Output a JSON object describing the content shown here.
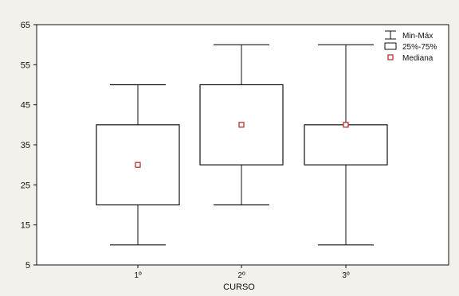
{
  "chart_data": {
    "type": "box",
    "categories": [
      "1º",
      "2º",
      "3º"
    ],
    "series": [
      {
        "stat": "Min-Máx / 25%-75% / Mediana",
        "boxes": [
          {
            "min": 10,
            "q1": 20,
            "median": 30,
            "q3": 40,
            "max": 50
          },
          {
            "min": 20,
            "q1": 30,
            "median": 40,
            "q3": 50,
            "max": 60
          },
          {
            "min": 10,
            "q1": 30,
            "median": 40,
            "q3": 40,
            "max": 60
          }
        ]
      }
    ],
    "title": "",
    "xlabel": "CURSO",
    "ylabel": "",
    "ylim": [
      5,
      65
    ],
    "yticks": [
      5,
      15,
      25,
      35,
      45,
      55,
      65
    ],
    "grid": false,
    "legend": {
      "placement": "top-right",
      "entries": [
        "Min-Máx",
        "25%-75%",
        "Mediana"
      ]
    },
    "colors": {
      "box": "#111111",
      "whisker": "#111111",
      "median_marker": "#b22222",
      "box_fill": "#ffffff",
      "background": "#f3f1ec"
    }
  }
}
